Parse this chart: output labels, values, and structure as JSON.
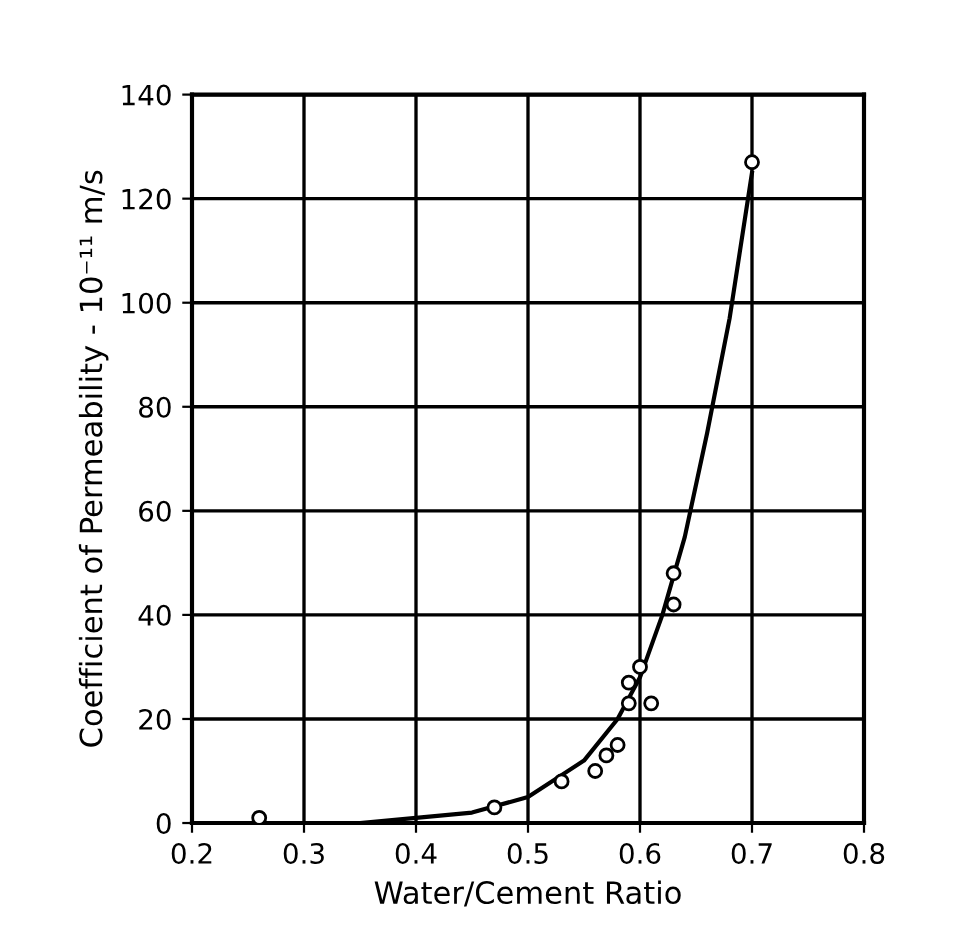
{
  "chart_data": {
    "type": "scatter",
    "xlabel": "Water/Cement Ratio",
    "ylabel": "Coefficient of Permeability - 10⁻¹¹ m/s",
    "xlim": [
      0.2,
      0.8
    ],
    "ylim": [
      0,
      140
    ],
    "xticks": [
      0.2,
      0.3,
      0.4,
      0.5,
      0.6,
      0.7,
      0.8
    ],
    "yticks": [
      0,
      20,
      40,
      60,
      80,
      100,
      120,
      140
    ],
    "grid": true,
    "marker": "circle",
    "series": [
      {
        "color": "#000000",
        "x": [
          0.26,
          0.47,
          0.53,
          0.56,
          0.57,
          0.58,
          0.59,
          0.59,
          0.6,
          0.61,
          0.63,
          0.63,
          0.7
        ],
        "values": [
          1,
          3,
          8,
          10,
          13,
          15,
          23,
          27,
          30,
          23,
          48,
          42,
          127
        ]
      },
      {
        "type": "line",
        "color": "#000000",
        "marker": "none",
        "line_style": "solid",
        "x": [
          0.35,
          0.4,
          0.45,
          0.5,
          0.55,
          0.58,
          0.6,
          0.62,
          0.64,
          0.66,
          0.68,
          0.7
        ],
        "values": [
          0,
          1,
          2,
          5,
          12,
          20,
          28,
          40,
          55,
          75,
          97,
          125
        ]
      }
    ]
  }
}
